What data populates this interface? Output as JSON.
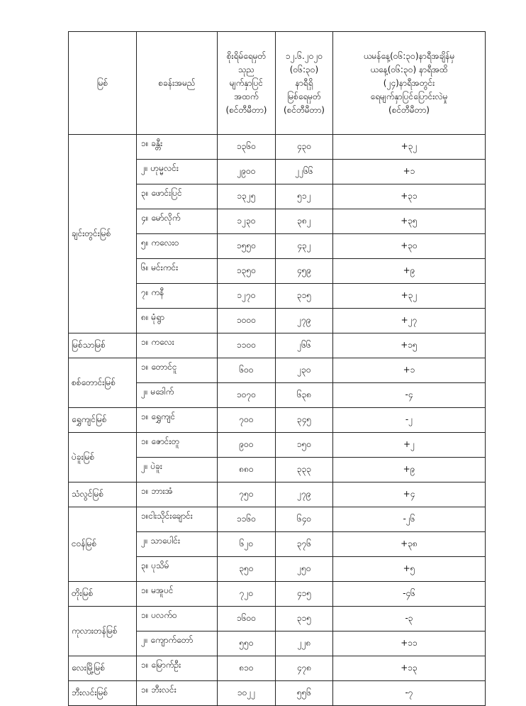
{
  "headers": [
    [
      "မြစ်"
    ],
    [
      "စခန်းအမည်"
    ],
    [
      "စိုးရိမ်ရေမှတ်",
      "သုည",
      "မျက်နှာပြင်",
      "အထက်",
      "(စင်တီမီတာ)"
    ],
    [
      "၁၂.၆.၂၀၂၀",
      "(၀၆:၃၀)",
      "နာရီရှိ",
      "မြစ်ရေမှတ်",
      "(စင်တီမီတာ)"
    ],
    [
      "ယမန်နေ့(၀၆:၃၀)နာရီအချိန်မှ",
      "ယနေ့(၀၆:၃၀) နာရီအထိ",
      "(၂၄)နာရီအတွင်း",
      "ရေမျက်နှာပြင်ပြောင်းလဲမှု",
      "(စင်တီမီတာ)"
    ]
  ],
  "rivers": [
    {
      "name": "ချင်းတွင်းမြစ်",
      "stations": [
        [
          "၁။ ခန္တီး",
          "၁၃၆၀",
          "၄၃၀",
          "+၃၂"
        ],
        [
          "၂။ ဟုမ္မလင်း",
          "၂၉၀၀",
          "၂၂၆၆",
          "+၁"
        ],
        [
          "၃။ ဖောင်းပြင်",
          "၁၃၂၅",
          "၅၁၂",
          "+၃၁"
        ],
        [
          "၄။ မော်လိုက်",
          "၁၂၃၀",
          "၃၈၂",
          "+၃၅"
        ],
        [
          "၅။ ကလေးဝ",
          "၁၅၅၀",
          "၄၃၂",
          "+၃၀"
        ],
        [
          "၆။ မင်းကင်း",
          "၁၃၅၀",
          "၄၅၉",
          "+၉"
        ],
        [
          "၇။ ကနီ",
          "၁၂၇၀",
          "၃၁၅",
          "+၃၂"
        ],
        [
          "၈။ မုံရွာ",
          "၁၀၀၀",
          "၂၇၉",
          "+၂၇"
        ]
      ]
    },
    {
      "name": "မြစ်သာမြစ်",
      "stations": [
        [
          "၁။ ကလေး",
          "၁၁၀၀",
          "၂၆၆",
          "+၁၅"
        ]
      ]
    },
    {
      "name": "စစ်တောင်းမြစ်",
      "stations": [
        [
          "၁။ တောင်ငူ",
          "၆၀၀",
          "၂၃၀",
          "+၁"
        ],
        [
          "၂။ မဒေါက်",
          "၁၀၇၀",
          "၆၃၈",
          "-၄"
        ]
      ]
    },
    {
      "name": "ရွှေကျင်မြစ်",
      "stations": [
        [
          "၁။ ရွှေကျင်",
          "၇၀၀",
          "၃၄၅",
          "-၂"
        ]
      ]
    },
    {
      "name": "ပဲခူးမြစ်",
      "stations": [
        [
          "၁။ ဇောင်းတူ",
          "၉၀၀",
          "၁၅၀",
          "+၂"
        ],
        [
          "၂။ ပဲခူး",
          "၈၈၀",
          "၃၃၃",
          "+၉"
        ]
      ]
    },
    {
      "name": "သံလွင်မြစ်",
      "stations": [
        [
          "၁။ ဘားအံ",
          "၇၅၀",
          "၂၇၉",
          "+၄"
        ]
      ]
    },
    {
      "name": "ငဝန်မြစ်",
      "stations": [
        [
          "၁။ငါးသိုင်းချောင်း",
          "၁၁၆၀",
          "၆၄၀",
          "-၂၆"
        ],
        [
          "၂။ သာပေါင်း",
          "၆၂၀",
          "၃၇၆",
          "+၃၈"
        ],
        [
          "၃။ ပုသိမ်",
          "၃၅၀",
          "၂၅၀",
          "+၅"
        ]
      ]
    },
    {
      "name": "တိုးမြစ်",
      "stations": [
        [
          "၁။ မအူပင်",
          "၇၂၀",
          "၄၁၅",
          "-၄၆"
        ]
      ]
    },
    {
      "name": "ကုလားတန်မြစ်",
      "stations": [
        [
          "၁။ ပလက်ဝ",
          "၁၆၀၀",
          "၃၁၅",
          "-၃"
        ],
        [
          "၂။ ကျောက်တော်",
          "၅၅၀",
          "၂၂၈",
          "+၁၁"
        ]
      ]
    },
    {
      "name": "လေးမြို့မြစ်",
      "stations": [
        [
          "၁။ မြောက်ဦး",
          "၈၁၀",
          "၄၇၈",
          "+၁၃"
        ]
      ]
    },
    {
      "name": "ဘီးလင်းမြစ်",
      "stations": [
        [
          "၁။ ဘီးလင်း",
          "၁၀၂၂",
          "၅၅၆",
          "-၇"
        ]
      ]
    }
  ]
}
